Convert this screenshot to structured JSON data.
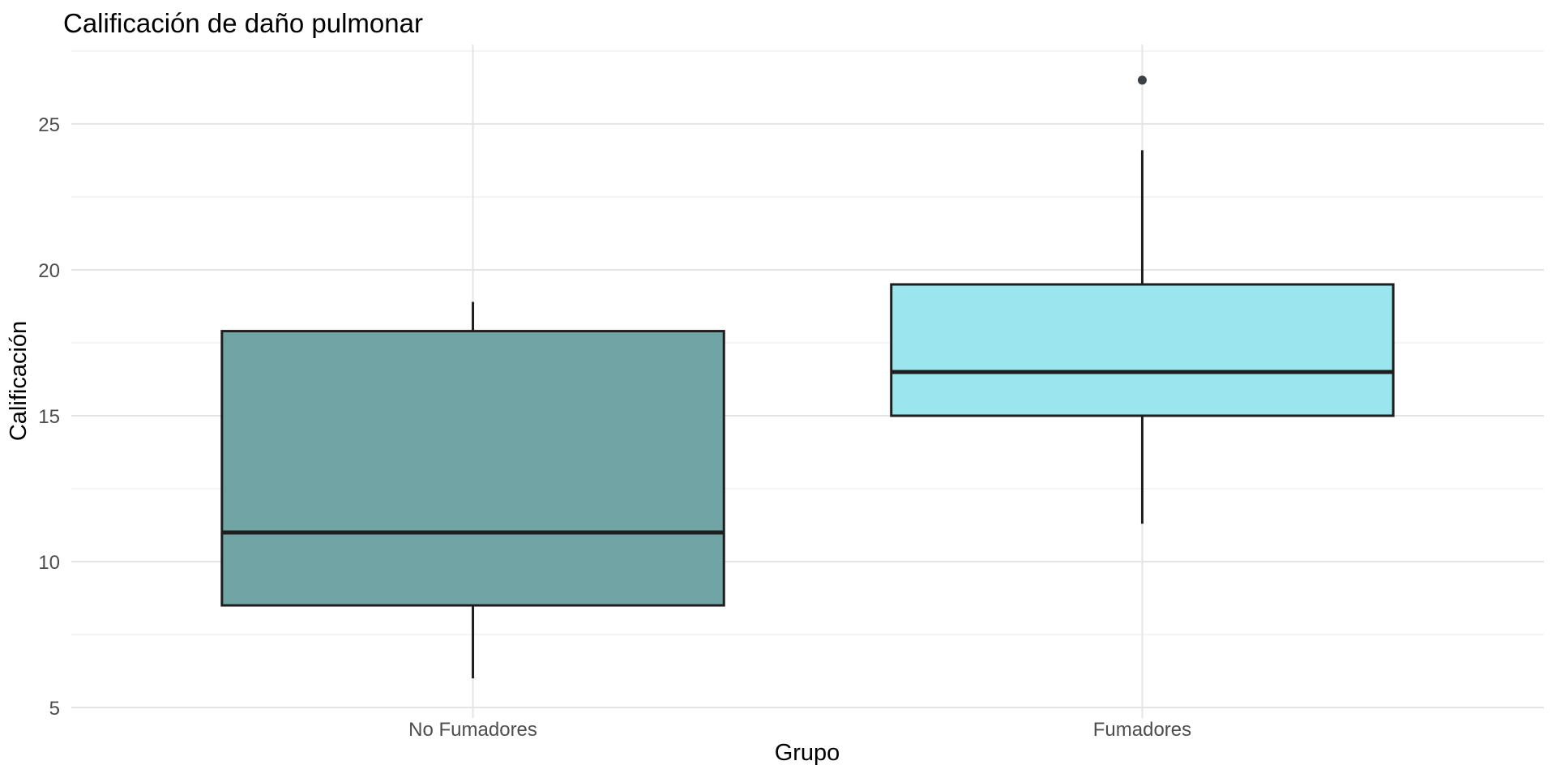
{
  "page": {
    "background": "#FFFFFF"
  },
  "chart_data": {
    "type": "boxplot",
    "title": "Calificación de daño pulmonar",
    "xlabel": "Grupo",
    "ylabel": "Calificación",
    "categories": [
      "No Fumadores",
      "Fumadores"
    ],
    "series": [
      {
        "name": "No Fumadores",
        "min": 6.0,
        "q1": 8.5,
        "median": 11.0,
        "q3": 17.9,
        "max": 18.9,
        "outliers": [],
        "fill": "#70A4A5"
      },
      {
        "name": "Fumadores",
        "min": 11.3,
        "q1": 15.0,
        "median": 16.5,
        "q3": 19.5,
        "max": 24.1,
        "outliers": [
          26.5
        ],
        "fill": "#9BE5EF"
      }
    ],
    "yticks": [
      5,
      10,
      15,
      20,
      25
    ],
    "minor_yticks": [
      7.5,
      12.5,
      17.5,
      22.5,
      27.5
    ],
    "ylim": [
      4.64,
      27.72
    ],
    "box_width_units": 0.75,
    "grid": "horizontal major+minor gridlines; one vertical gridline per category; no panel border",
    "legend": "none",
    "styles": {
      "box_border_color": "#1E1E1E",
      "median_color": "#1E1E1E",
      "whisker_color": "#1E1E1E",
      "outlier_color": "#3C4043",
      "grid_major_color": "#E4E4E4",
      "grid_minor_color": "#F2F2F2",
      "tick_label_color": "#4D4D4D"
    }
  }
}
